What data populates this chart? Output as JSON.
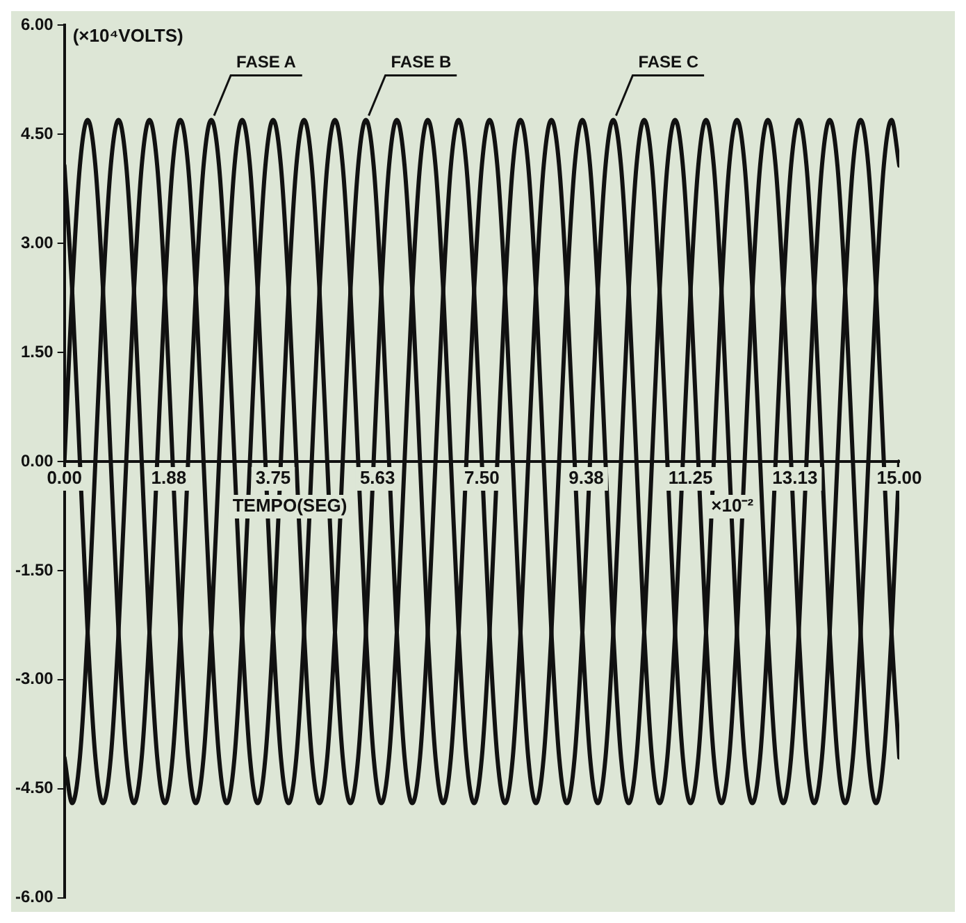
{
  "chart_data": {
    "type": "line",
    "xlabel": "TEMPO(SEG)",
    "ylabel": "(×10⁴VOLTS)",
    "annotations": [
      "×10⁻²"
    ],
    "x": [
      0,
      0.139,
      0.278,
      0.417,
      0.556,
      0.694,
      0.833,
      0.972,
      1.111,
      1.25,
      1.389,
      1.528,
      1.667,
      1.806,
      1.944,
      2.083,
      2.222,
      2.361,
      2.5,
      2.639,
      2.778,
      2.917,
      3.056,
      3.194,
      3.333,
      3.472,
      3.611,
      3.75,
      3.889,
      4.028,
      4.167,
      4.306,
      4.444,
      4.583,
      4.722,
      4.861,
      5,
      5.139,
      5.278,
      5.417,
      5.556,
      5.694,
      5.833,
      5.972,
      6.111,
      6.25,
      6.389,
      6.528,
      6.667,
      6.806,
      6.944,
      7.083,
      7.222,
      7.361,
      7.5,
      7.639,
      7.778,
      7.917,
      8.056,
      8.194,
      8.333,
      8.472,
      8.611,
      8.75,
      8.889,
      9.028,
      9.167,
      9.306,
      9.444,
      9.583,
      9.722,
      9.861,
      10,
      10.139,
      10.278,
      10.417,
      10.556,
      10.694,
      10.833,
      10.972,
      11.111,
      11.25,
      11.389,
      11.528,
      11.667,
      11.806,
      11.944,
      12.083,
      12.222,
      12.361,
      12.5,
      12.639,
      12.778,
      12.917,
      13.056,
      13.194,
      13.333,
      13.472,
      13.611,
      13.75,
      13.889,
      14.028,
      14.167,
      14.306,
      14.444,
      14.583,
      14.722,
      14.861,
      15
    ],
    "series": [
      {
        "name": "FASE A",
        "color": "#111111",
        "values": [
          -4.07,
          -4.7,
          -4.07,
          -2.35,
          0,
          2.35,
          4.07,
          4.7,
          4.07,
          2.35,
          0,
          -2.35,
          -4.07,
          -4.7,
          -4.07,
          -2.35,
          0,
          2.35,
          4.07,
          4.7,
          4.07,
          2.35,
          0,
          -2.35,
          -4.07,
          -4.7,
          -4.07,
          -2.35,
          0,
          2.35,
          4.07,
          4.7,
          4.07,
          2.35,
          0,
          -2.35,
          -4.07,
          -4.7,
          -4.07,
          -2.35,
          0,
          2.35,
          4.07,
          4.7,
          4.07,
          2.35,
          0,
          -2.35,
          -4.07,
          -4.7,
          -4.07,
          -2.35,
          0,
          2.35,
          4.07,
          4.7,
          4.07,
          2.35,
          0,
          -2.35,
          -4.07,
          -4.7,
          -4.07,
          -2.35,
          0,
          2.35,
          4.07,
          4.7,
          4.07,
          2.35,
          0,
          -2.35,
          -4.07,
          -4.7,
          -4.07,
          -2.35,
          0,
          2.35,
          4.07,
          4.7,
          4.07,
          2.35,
          0,
          -2.35,
          -4.07,
          -4.7,
          -4.07,
          -2.35,
          0,
          2.35,
          4.07,
          4.7,
          4.07,
          2.35,
          0,
          -2.35,
          -4.07,
          -4.7,
          -4.07,
          -2.35,
          0,
          2.35,
          4.07,
          4.7,
          4.07,
          2.35,
          0,
          -2.35,
          -4.07
        ]
      },
      {
        "name": "FASE B",
        "color": "#111111",
        "values": [
          0,
          2.35,
          4.07,
          4.7,
          4.07,
          2.35,
          0,
          -2.35,
          -4.07,
          -4.7,
          -4.07,
          -2.35,
          0,
          2.35,
          4.07,
          4.7,
          4.07,
          2.35,
          0,
          -2.35,
          -4.07,
          -4.7,
          -4.07,
          -2.35,
          0,
          2.35,
          4.07,
          4.7,
          4.07,
          2.35,
          0,
          -2.35,
          -4.07,
          -4.7,
          -4.07,
          -2.35,
          0,
          2.35,
          4.07,
          4.7,
          4.07,
          2.35,
          0,
          -2.35,
          -4.07,
          -4.7,
          -4.07,
          -2.35,
          0,
          2.35,
          4.07,
          4.7,
          4.07,
          2.35,
          0,
          -2.35,
          -4.07,
          -4.7,
          -4.07,
          -2.35,
          0,
          2.35,
          4.07,
          4.7,
          4.07,
          2.35,
          0,
          -2.35,
          -4.07,
          -4.7,
          -4.07,
          -2.35,
          0,
          2.35,
          4.07,
          4.7,
          4.07,
          2.35,
          0,
          -2.35,
          -4.07,
          -4.7,
          -4.07,
          -2.35,
          0,
          2.35,
          4.07,
          4.7,
          4.07,
          2.35,
          0,
          -2.35,
          -4.07,
          -4.7,
          -4.07,
          -2.35,
          0,
          2.35,
          4.07,
          4.7,
          4.07,
          2.35,
          0,
          -2.35,
          -4.07,
          -4.7,
          -4.07,
          -2.35,
          0
        ]
      },
      {
        "name": "FASE C",
        "color": "#111111",
        "values": [
          4.07,
          2.35,
          0,
          -2.35,
          -4.07,
          -4.7,
          -4.07,
          -2.35,
          0,
          2.35,
          4.07,
          4.7,
          4.07,
          2.35,
          0,
          -2.35,
          -4.07,
          -4.7,
          -4.07,
          -2.35,
          0,
          2.35,
          4.07,
          4.7,
          4.07,
          2.35,
          0,
          -2.35,
          -4.07,
          -4.7,
          -4.07,
          -2.35,
          0,
          2.35,
          4.07,
          4.7,
          4.07,
          2.35,
          0,
          -2.35,
          -4.07,
          -4.7,
          -4.07,
          -2.35,
          0,
          2.35,
          4.07,
          4.7,
          4.07,
          2.35,
          0,
          -2.35,
          -4.07,
          -4.7,
          -4.07,
          -2.35,
          0,
          2.35,
          4.07,
          4.7,
          4.07,
          2.35,
          0,
          -2.35,
          -4.07,
          -4.7,
          -4.07,
          -2.35,
          0,
          2.35,
          4.07,
          4.7,
          4.07,
          2.35,
          0,
          -2.35,
          -4.07,
          -4.7,
          -4.07,
          -2.35,
          0,
          2.35,
          4.07,
          4.7,
          4.07,
          2.35,
          0,
          -2.35,
          -4.07,
          -4.7,
          -4.07,
          -2.35,
          0,
          2.35,
          4.07,
          4.7,
          4.07,
          2.35,
          0,
          -2.35,
          -4.07,
          -4.7,
          -4.07,
          -2.35,
          0,
          2.35,
          4.07,
          4.7,
          4.07
        ]
      }
    ],
    "xlim": [
      0,
      15
    ],
    "xticks": [
      {
        "value": 0,
        "label": "0.00"
      },
      {
        "value": 1.875,
        "label": "1.88"
      },
      {
        "value": 3.75,
        "label": "3.75"
      },
      {
        "value": 5.625,
        "label": "5.63"
      },
      {
        "value": 7.5,
        "label": "7.50"
      },
      {
        "value": 9.375,
        "label": "9.38"
      },
      {
        "value": 11.25,
        "label": "11.25"
      },
      {
        "value": 13.125,
        "label": "13.13"
      },
      {
        "value": 15,
        "label": "15.00"
      }
    ],
    "ylim": [
      -6,
      6
    ],
    "yticks": [
      {
        "value": -6,
        "label": "-6.00"
      },
      {
        "value": -4.5,
        "label": "-4.50"
      },
      {
        "value": -3,
        "label": "-3.00"
      },
      {
        "value": -1.5,
        "label": "-1.50"
      },
      {
        "value": 0,
        "label": "0.00"
      },
      {
        "value": 1.5,
        "label": "1.50"
      },
      {
        "value": 3,
        "label": "3.00"
      },
      {
        "value": 4.5,
        "label": "4.50"
      },
      {
        "value": 6,
        "label": "6.00"
      }
    ],
    "grid": false,
    "legend": false,
    "marker": "none",
    "line_style": "solid"
  }
}
